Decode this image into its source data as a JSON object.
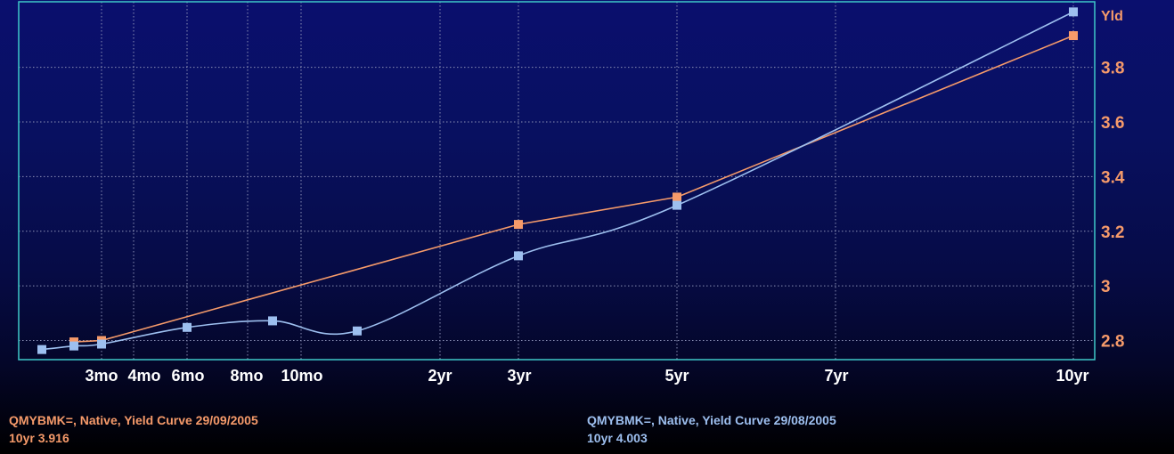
{
  "chart_data": {
    "type": "line",
    "y_axis_title": "Yld",
    "y_ticks": [
      2.8,
      3,
      3.2,
      3.4,
      3.6,
      3.8
    ],
    "y_tick_labels": [
      "2.8",
      "3",
      "3.2",
      "3.4",
      "3.6",
      "3.8"
    ],
    "ylim": [
      2.73,
      4.04
    ],
    "x_ticks": [
      "3mo",
      "4mo",
      "6mo",
      "8mo",
      "10mo",
      "2yr",
      "3yr",
      "5yr",
      "7yr",
      "10yr"
    ],
    "grid": true,
    "series": [
      {
        "name": "QMYBMK=, Native, Yield Curve 29/09/2005",
        "color": "#f59a6a",
        "smooth": false,
        "points": [
          {
            "x": "~2.5mo",
            "y": 2.795
          },
          {
            "x": "3mo",
            "y": 2.8
          },
          {
            "x": "3yr",
            "y": 3.225
          },
          {
            "x": "5yr",
            "y": 3.325
          },
          {
            "x": "10yr",
            "y": 3.916
          }
        ]
      },
      {
        "name": "QMYBMK=, Native, Yield Curve 29/08/2005",
        "color": "#9dbfef",
        "smooth": true,
        "points": [
          {
            "x": "~1mo",
            "y": 2.767
          },
          {
            "x": "~2.5mo",
            "y": 2.78
          },
          {
            "x": "3mo",
            "y": 2.787
          },
          {
            "x": "6mo",
            "y": 2.848
          },
          {
            "x": "~9mo",
            "y": 2.872
          },
          {
            "x": "~1yr",
            "y": 2.835
          },
          {
            "x": "3yr",
            "y": 3.11
          },
          {
            "x": "5yr",
            "y": 3.295
          },
          {
            "x": "10yr",
            "y": 4.003
          }
        ]
      }
    ]
  },
  "legend": [
    {
      "title": "QMYBMK=, Native, Yield Curve 29/09/2005",
      "value": "10yr 3.916",
      "color": "#f59a6a"
    },
    {
      "title": "QMYBMK=, Native, Yield Curve 29/08/2005",
      "value": "10yr 4.003",
      "color": "#9dbfef"
    }
  ],
  "colors": {
    "plot_border": "#3ec9c9",
    "grid": "#8a8fb5",
    "x_label": "#ffffff",
    "y_label": "#f59a6a"
  }
}
